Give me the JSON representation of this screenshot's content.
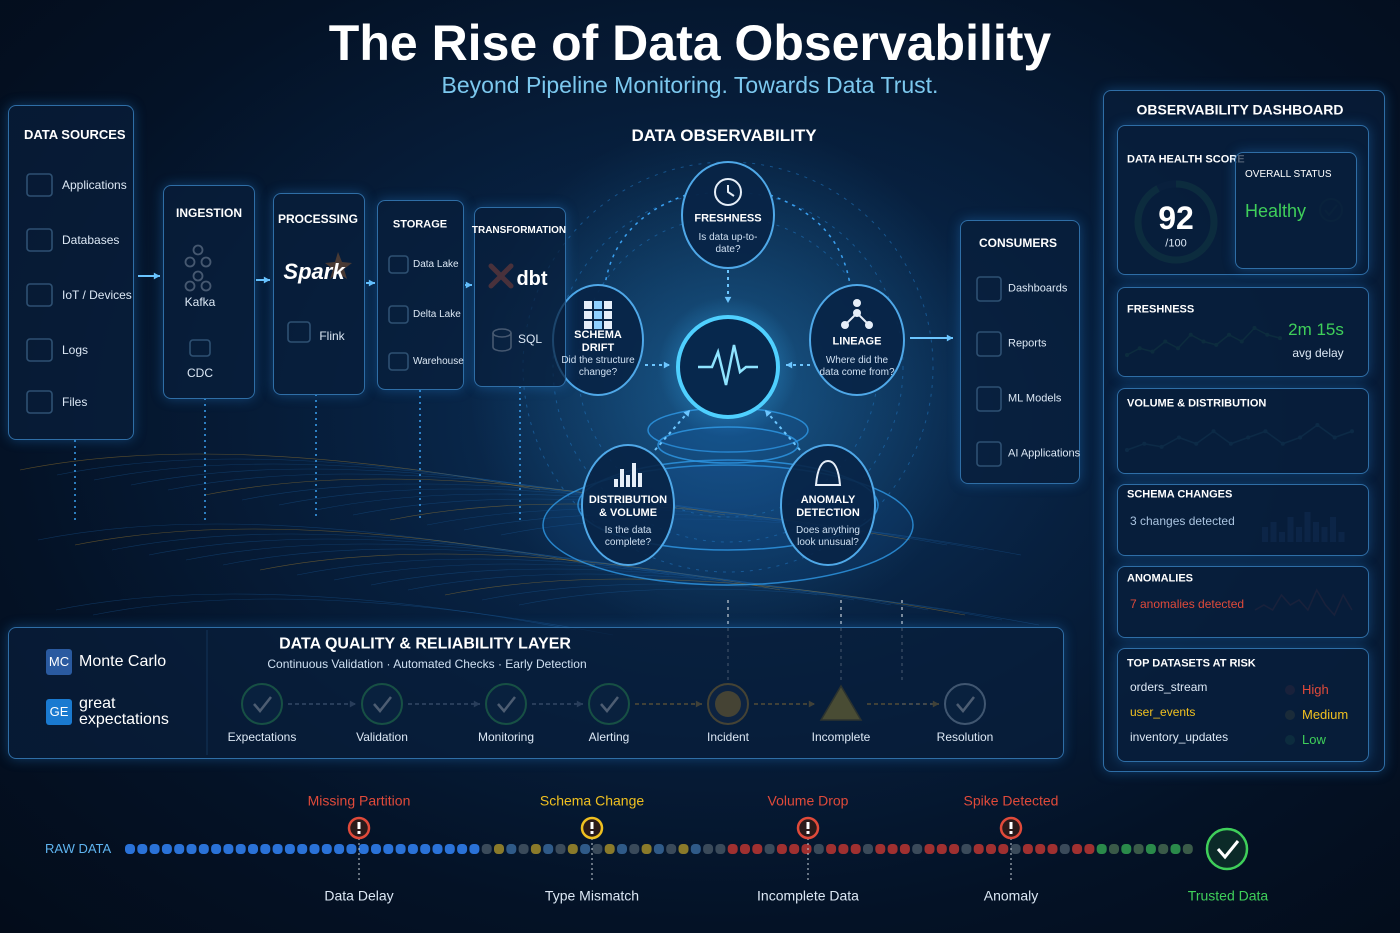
{
  "header": {
    "title": "The Rise of Data Observability",
    "subtitle": "Beyond Pipeline Monitoring. Towards Data Trust."
  },
  "sources": {
    "title": "DATA SOURCES",
    "items": [
      "Applications",
      "Databases",
      "IoT / Devices",
      "Logs",
      "Files"
    ]
  },
  "ingestion": {
    "title": "INGESTION",
    "items": [
      "Kafka",
      "CDC"
    ]
  },
  "processing": {
    "title": "PROCESSING",
    "items": [
      "Spark",
      "Flink"
    ]
  },
  "storage": {
    "title": "STORAGE",
    "items": [
      "Data Lake",
      "Delta Lake",
      "Warehouse"
    ]
  },
  "transformation": {
    "title": "TRANSFORMATION",
    "items": [
      "dbt",
      "SQL"
    ]
  },
  "observability": {
    "title": "DATA OBSERVABILITY",
    "pillars": [
      {
        "title": "FRESHNESS",
        "question": "Is data up-to-date?"
      },
      {
        "title": "SCHEMA DRIFT",
        "question": "Did the structure change?"
      },
      {
        "title": "LINEAGE",
        "question": "Where did the data come from?"
      },
      {
        "title": "DISTRIBUTION & VOLUME",
        "question": "Is the data complete?"
      },
      {
        "title": "ANOMALY DETECTION",
        "question": "Does anything look unusual?"
      }
    ]
  },
  "consumers": {
    "title": "CONSUMERS",
    "items": [
      "Dashboards",
      "Reports",
      "ML Models",
      "AI Applications"
    ]
  },
  "dashboard": {
    "title": "OBSERVABILITY DASHBOARD",
    "health": {
      "label": "DATA HEALTH SCORE",
      "score": 92,
      "max": {
        "value": 100,
        "label": "/100"
      },
      "color": "#3fcf5a"
    },
    "status": {
      "label": "OVERALL STATUS",
      "value": "Healthy",
      "color": "#3fcf5a"
    },
    "freshness": {
      "label": "FRESHNESS",
      "value": "2m 15s",
      "note": "avg delay",
      "trend": [
        3,
        4,
        3.5,
        5,
        4,
        6,
        5,
        4.5,
        6,
        5,
        7,
        6,
        5.5
      ],
      "color": "#3fcf5a"
    },
    "volume": {
      "label": "VOLUME & DISTRIBUTION",
      "trend": [
        4,
        5,
        4.5,
        6,
        5,
        7,
        5,
        6,
        7,
        5,
        6,
        8,
        6,
        7
      ],
      "color": "#3fb8c8"
    },
    "schema": {
      "label": "SCHEMA CHANGES",
      "note": "3 changes detected",
      "bars": [
        3,
        4,
        2,
        5,
        3,
        6,
        4,
        3,
        5,
        2
      ],
      "color": "#3a7ad0"
    },
    "anomalies": {
      "label": "ANOMALIES",
      "note": "7 anomalies detected",
      "trend": [
        3,
        4,
        3,
        6,
        4,
        5,
        3,
        7,
        4,
        2,
        6,
        3
      ],
      "color": "#e04a3a"
    },
    "risk": {
      "title": "TOP DATASETS AT RISK",
      "datasets": [
        {
          "name": "orders_stream",
          "color": "#dce8f5"
        },
        {
          "name": "user_events",
          "color": "#f0c020"
        },
        {
          "name": "inventory_updates",
          "color": "#dce8f5"
        }
      ],
      "levels": [
        {
          "label": "High",
          "color": "#e04a3a"
        },
        {
          "label": "Medium",
          "color": "#f0c020"
        },
        {
          "label": "Low",
          "color": "#3fcf5a"
        }
      ]
    }
  },
  "quality": {
    "title": "DATA QUALITY & RELIABILITY LAYER",
    "subtitle": "Continuous Validation · Automated Checks · Early Detection",
    "tools": [
      {
        "badge": "MC",
        "name": "Monte Carlo"
      },
      {
        "badge": "GE",
        "name": "great expectations"
      }
    ],
    "steps": [
      {
        "label": "Expectations",
        "shape": "check",
        "color": "#3fcf5a"
      },
      {
        "label": "Validation",
        "shape": "check",
        "color": "#3fcf5a"
      },
      {
        "label": "Monitoring",
        "shape": "check",
        "color": "#3fcf5a"
      },
      {
        "label": "Alerting",
        "shape": "check",
        "color": "#3fcf5a"
      },
      {
        "label": "Incident",
        "shape": "incident",
        "color": "#e0a020"
      },
      {
        "label": "Incomplete",
        "shape": "warning",
        "color": "#f0c020"
      },
      {
        "label": "Resolution",
        "shape": "check",
        "color": "#cfe4f8"
      }
    ]
  },
  "timeline": {
    "label": "RAW DATA",
    "events": [
      {
        "above": "Missing Partition",
        "below": "Data Delay",
        "color": "#e04a3a"
      },
      {
        "above": "Schema Change",
        "below": "Type Mismatch",
        "color": "#f0c020"
      },
      {
        "above": "Volume Drop",
        "below": "Incomplete Data",
        "color": "#e04a3a"
      },
      {
        "above": "Spike Detected",
        "below": "Anomaly",
        "color": "#e04a3a"
      }
    ],
    "end": {
      "label": "Trusted Data",
      "color": "#3fcf5a"
    }
  }
}
